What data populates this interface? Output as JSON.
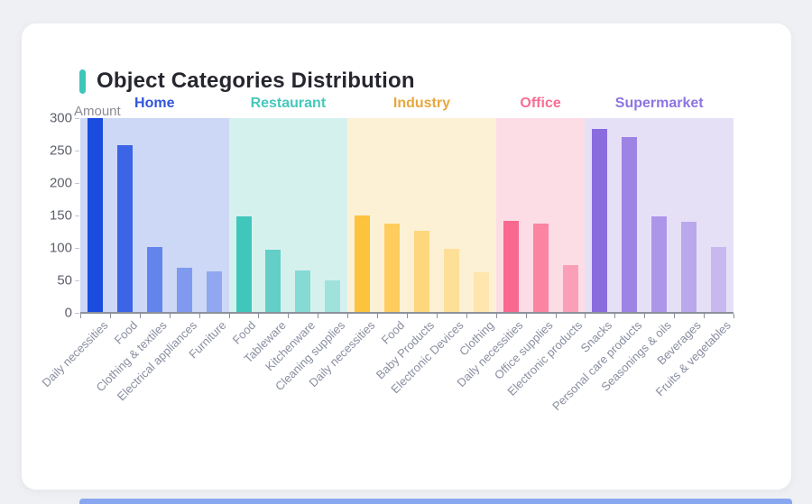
{
  "card": {
    "accent_color": "#3ec6b9"
  },
  "chart_data": {
    "type": "bar",
    "title": "Object Categories Distribution",
    "ylabel": "Amount",
    "xlabel": "",
    "ylim": [
      0,
      300
    ],
    "y_ticks": [
      0,
      50,
      100,
      150,
      200,
      250,
      300
    ],
    "grid": false,
    "legend_position": "none",
    "groups": [
      {
        "name": "Home",
        "label_color": "#3254dc",
        "band_color": "#cdd8f6",
        "bars": [
          {
            "category": "Daily necessities",
            "value": 300,
            "color": "#1b4ce0"
          },
          {
            "category": "Food",
            "value": 258,
            "color": "#3c64e6"
          },
          {
            "category": "Clothing & textiles",
            "value": 102,
            "color": "#6384ec"
          },
          {
            "category": "Electrical appliances",
            "value": 70,
            "color": "#7f9aef"
          },
          {
            "category": "Furniture",
            "value": 64,
            "color": "#91a7f1"
          }
        ]
      },
      {
        "name": "Restaurant",
        "label_color": "#45c8bc",
        "band_color": "#d5f1ee",
        "bars": [
          {
            "category": "Food",
            "value": 148,
            "color": "#41c6bb"
          },
          {
            "category": "Tableware",
            "value": 97,
            "color": "#63cfc7"
          },
          {
            "category": "Kitchenware",
            "value": 65,
            "color": "#85dad3"
          },
          {
            "category": "Cleaning supplies",
            "value": 50,
            "color": "#9fe2dc"
          }
        ]
      },
      {
        "name": "Industry",
        "label_color": "#e8a83e",
        "band_color": "#fdf1d5",
        "bars": [
          {
            "category": "Daily necessities",
            "value": 150,
            "color": "#fec33c"
          },
          {
            "category": "Food",
            "value": 138,
            "color": "#fecd5d"
          },
          {
            "category": "Baby Products",
            "value": 126,
            "color": "#fed67b"
          },
          {
            "category": "Electronic Devices",
            "value": 99,
            "color": "#fedf98"
          },
          {
            "category": "Clothing",
            "value": 63,
            "color": "#fee6ae"
          }
        ]
      },
      {
        "name": "Office",
        "label_color": "#f76d95",
        "band_color": "#fcdde6",
        "bars": [
          {
            "category": "Daily necessities",
            "value": 141,
            "color": "#f9688f"
          },
          {
            "category": "Office supplies",
            "value": 138,
            "color": "#fa84a2"
          },
          {
            "category": "Electronic products",
            "value": 74,
            "color": "#fb9fb8"
          }
        ]
      },
      {
        "name": "Supermarket",
        "label_color": "#8c74e0",
        "band_color": "#e6e0f7",
        "bars": [
          {
            "category": "Snacks",
            "value": 284,
            "color": "#8a6cdf"
          },
          {
            "category": "Personal care products",
            "value": 271,
            "color": "#9c83e4"
          },
          {
            "category": "Seasonings & oils",
            "value": 148,
            "color": "#ad96e9"
          },
          {
            "category": "Beverages",
            "value": 140,
            "color": "#bba7ec"
          },
          {
            "category": "Fruits & vegetables",
            "value": 101,
            "color": "#c9b8f0"
          }
        ]
      }
    ]
  }
}
